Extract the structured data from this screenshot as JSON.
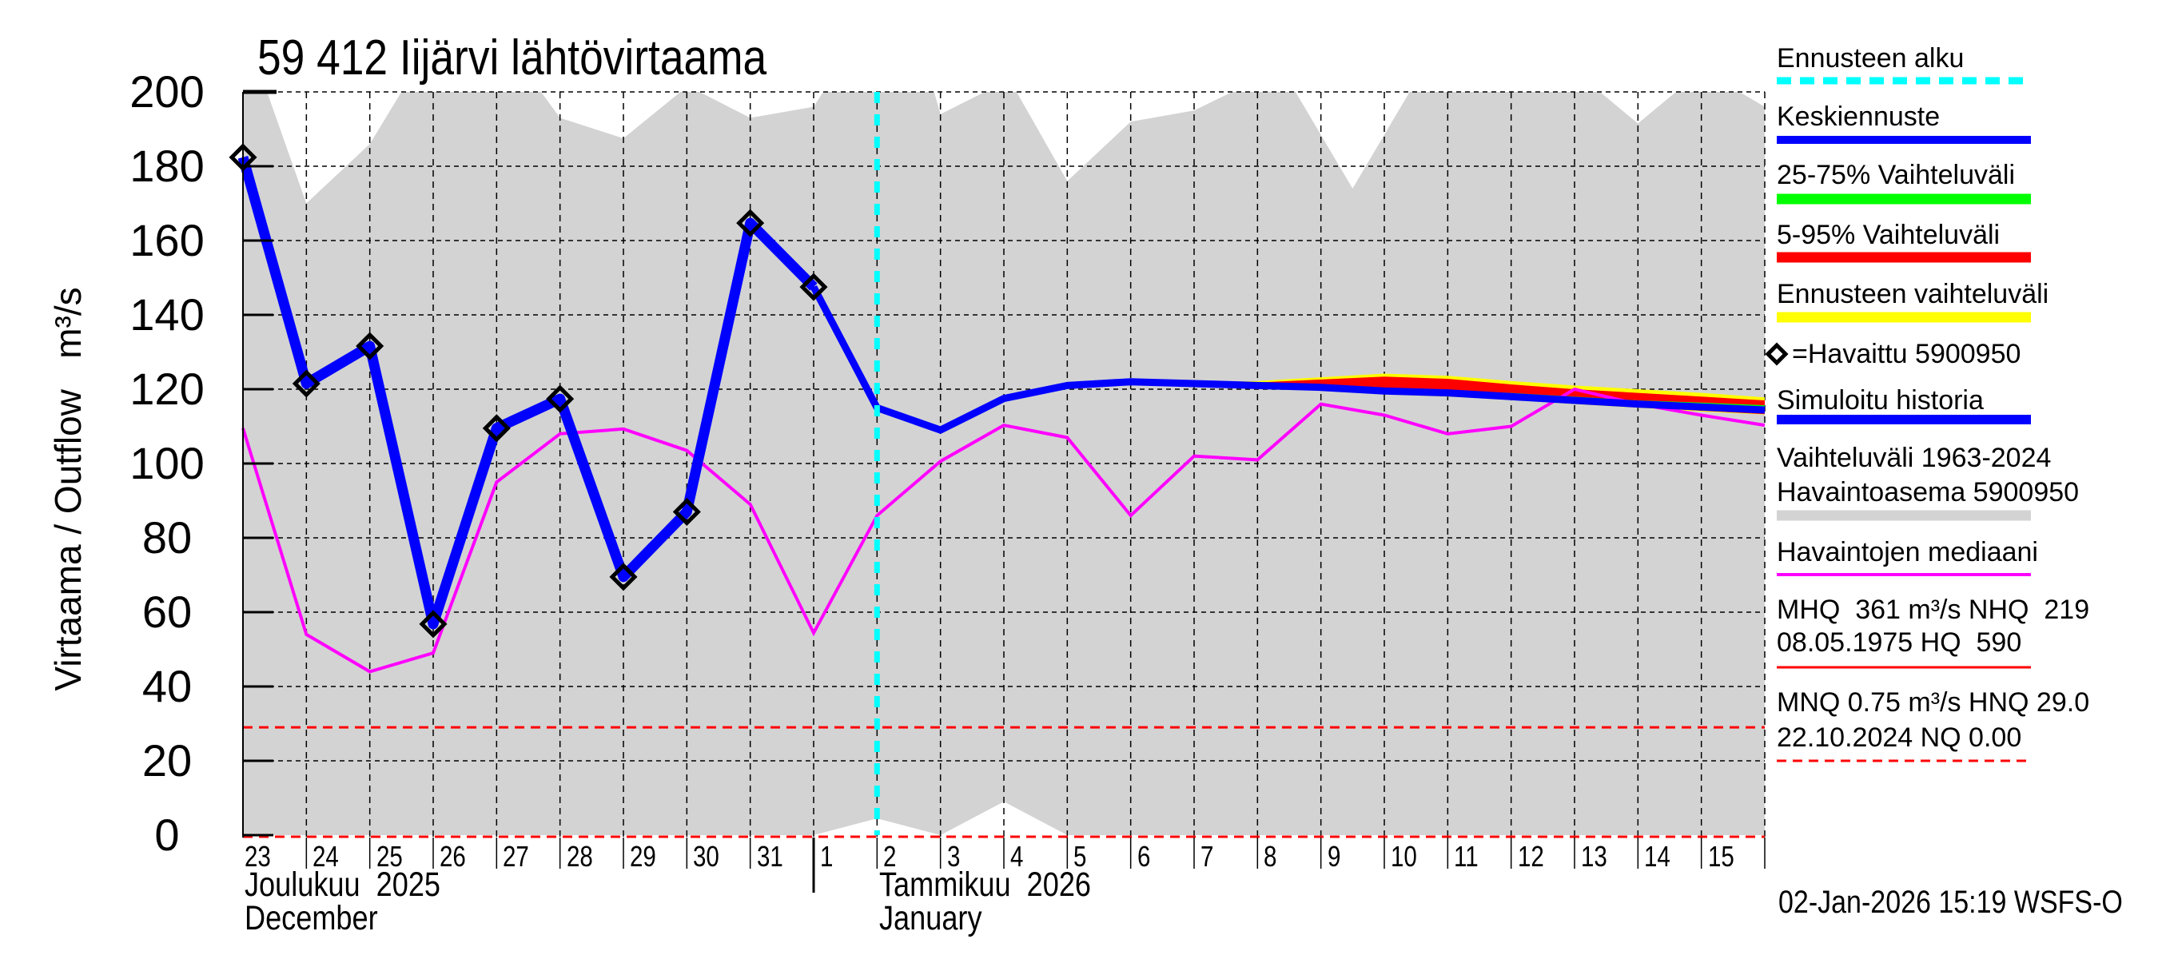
{
  "title": "59 412 Iijärvi lähtövirtaama",
  "y_axis_label": "Virtaama / Outflow   m³/s",
  "timestamp_footer": "02-Jan-2026 15:19 WSFS-O",
  "x_axis": {
    "day_labels": [
      "23",
      "24",
      "25",
      "26",
      "27",
      "28",
      "29",
      "30",
      "31",
      "1",
      "2",
      "3",
      "4",
      "5",
      "6",
      "7",
      "8",
      "9",
      "10",
      "11",
      "12",
      "13",
      "14",
      "15"
    ],
    "month_labels": [
      {
        "fi": "Joulukuu  2025",
        "en": "December"
      },
      {
        "fi": "Tammikuu  2026",
        "en": "January"
      }
    ]
  },
  "y_axis": {
    "ticks": [
      "200",
      "180",
      "160",
      "140",
      "120",
      "100",
      "80",
      "60",
      "40",
      "20",
      "0"
    ]
  },
  "legend": {
    "forecast_start": "Ennusteen alku",
    "mean_forecast": "Keskiennuste",
    "range_25_75": "25-75% Vaihteluväli",
    "range_5_95": "5-95% Vaihteluväli",
    "forecast_range": "Ennusteen vaihteluväli",
    "observed": "=Havaittu 5900950",
    "simulated_history": "Simuloitu historia",
    "historical_range_line1": "Vaihteluväli 1963-2024",
    "historical_range_line2": "Havaintoasema 5900950",
    "median": "Havaintojen mediaani",
    "mhq_line1": "MHQ  361 m³/s NHQ  219",
    "mhq_line2": "08.05.1975 HQ  590",
    "mnq_line1": "MNQ 0.75 m³/s HNQ 29.0",
    "mnq_line2": "22.10.2024 NQ 0.00"
  },
  "colors": {
    "forecast_start": "#00ffff",
    "mean_forecast": "#0000ff",
    "range_25_75": "#00ff00",
    "range_5_95": "#ff0000",
    "forecast_range": "#ffff00",
    "historical_range": "#d3d3d3",
    "median": "#ff00ff",
    "hq_lines": "#ff0000",
    "observed_marker": "#000000"
  },
  "chart_data": {
    "type": "line",
    "title": "59 412 Iijärvi lähtövirtaama",
    "xlabel": "",
    "ylabel": "Virtaama / Outflow m³/s",
    "ylim": [
      0,
      200
    ],
    "x_start": "2025-12-23",
    "x_end": "2026-01-16",
    "grid": true,
    "legend_position": "right",
    "forecast_start_day_index": 10,
    "x": [
      "2025-12-23",
      "2025-12-24",
      "2025-12-25",
      "2025-12-26",
      "2025-12-27",
      "2025-12-28",
      "2025-12-29",
      "2025-12-30",
      "2025-12-31",
      "2026-01-01",
      "2026-01-02",
      "2026-01-03",
      "2026-01-04",
      "2026-01-05",
      "2026-01-06",
      "2026-01-07",
      "2026-01-08",
      "2026-01-09",
      "2026-01-10",
      "2026-01-11",
      "2026-01-12",
      "2026-01-13",
      "2026-01-14",
      "2026-01-15",
      "2026-01-16"
    ],
    "series": [
      {
        "name": "Havaittu 5900950 (observed)",
        "day_index_start": 0,
        "values": [
          182.4,
          121.5,
          131.6,
          56.8,
          109.5,
          117.4,
          69.5,
          87.0,
          164.7,
          147.5
        ]
      },
      {
        "name": "Keskiennuste / Simuloitu historia",
        "day_index_start": 0,
        "values": [
          182.4,
          121.5,
          131.6,
          56.8,
          109.5,
          117.4,
          69.5,
          87.0,
          164.7,
          147.5,
          115.0,
          109.0,
          117.5,
          121.0,
          122.0,
          121.5,
          121.0,
          120.5,
          119.5,
          119.0,
          118.0,
          117.0,
          116.0,
          115.2,
          114.4
        ]
      },
      {
        "name": "Havaintojen mediaani",
        "day_index_start": 0,
        "values": [
          109.5,
          54.0,
          44.0,
          49.0,
          95.0,
          108.0,
          109.3,
          103.5,
          89.0,
          54.4,
          86.0,
          100.6,
          110.3,
          107.0,
          86.0,
          102.0,
          101.0,
          116.0,
          113.0,
          108.0,
          110.0,
          120.0,
          116.0,
          113.0,
          110.3
        ]
      }
    ],
    "bands": {
      "forecast_range": {
        "day_index_start": 15,
        "upper": [
          121.8,
          122.2,
          123.2,
          124.2,
          123.6,
          122.2,
          121.0,
          120.0,
          119.0,
          117.8
        ],
        "lower": [
          121.0,
          120.3,
          119.6,
          118.6,
          118.0,
          117.1,
          116.0,
          115.0,
          114.0,
          113.2
        ]
      },
      "range_5_95": {
        "day_index_start": 15,
        "upper": [
          121.7,
          121.8,
          122.6,
          123.4,
          122.8,
          121.3,
          120.0,
          119.0,
          118.0,
          117.0
        ],
        "lower": [
          121.1,
          120.4,
          119.7,
          118.8,
          118.2,
          117.3,
          116.2,
          115.2,
          114.2,
          113.3
        ]
      },
      "range_25_75": {
        "day_index_start": 15,
        "upper": [
          121.6,
          121.2,
          120.8,
          120.3,
          119.7,
          119.0,
          118.0,
          117.0,
          116.4,
          115.7
        ],
        "lower": [
          121.3,
          120.7,
          120.2,
          119.2,
          118.6,
          117.7,
          116.7,
          115.8,
          115.0,
          114.2
        ]
      },
      "historical_range_1963_2024": {
        "upper_points": [
          [
            0,
            200
          ],
          [
            0.38,
            200
          ],
          [
            1,
            170
          ],
          [
            2,
            186
          ],
          [
            2.5,
            200
          ],
          [
            4.7,
            200
          ],
          [
            5,
            193
          ],
          [
            6,
            187.5
          ],
          [
            6.9,
            200
          ],
          [
            7.2,
            200
          ],
          [
            8,
            193
          ],
          [
            9,
            196
          ],
          [
            9.15,
            200
          ],
          [
            10.9,
            200
          ],
          [
            11,
            194
          ],
          [
            11.7,
            200
          ],
          [
            12.2,
            200
          ],
          [
            13,
            176
          ],
          [
            14,
            192
          ],
          [
            15,
            195
          ],
          [
            15.6,
            200
          ],
          [
            16.6,
            200
          ],
          [
            17.5,
            174
          ],
          [
            18.4,
            200
          ],
          [
            21.4,
            200
          ],
          [
            22,
            191.5
          ],
          [
            22.6,
            200
          ],
          [
            23.6,
            200
          ],
          [
            24,
            196
          ]
        ],
        "lower_points": [
          [
            0,
            0
          ],
          [
            9,
            0
          ],
          [
            10,
            4.5
          ],
          [
            11,
            0
          ],
          [
            12,
            9
          ],
          [
            13,
            0
          ],
          [
            24,
            0
          ]
        ]
      }
    },
    "reference_lines": [
      {
        "name": "HNQ",
        "value": 29.0,
        "style": "dashed",
        "color": "#ff0000"
      },
      {
        "name": "NQ",
        "value": 0.0,
        "style": "dashed",
        "color": "#ff0000"
      }
    ],
    "annotations": {
      "MHQ": "361 m³/s",
      "NHQ": "219",
      "HQ": "590",
      "HQ_date": "08.05.1975",
      "MNQ": "0.75 m³/s",
      "HNQ": "29.0",
      "NQ": "0.00",
      "NQ_date": "22.10.2024"
    }
  }
}
